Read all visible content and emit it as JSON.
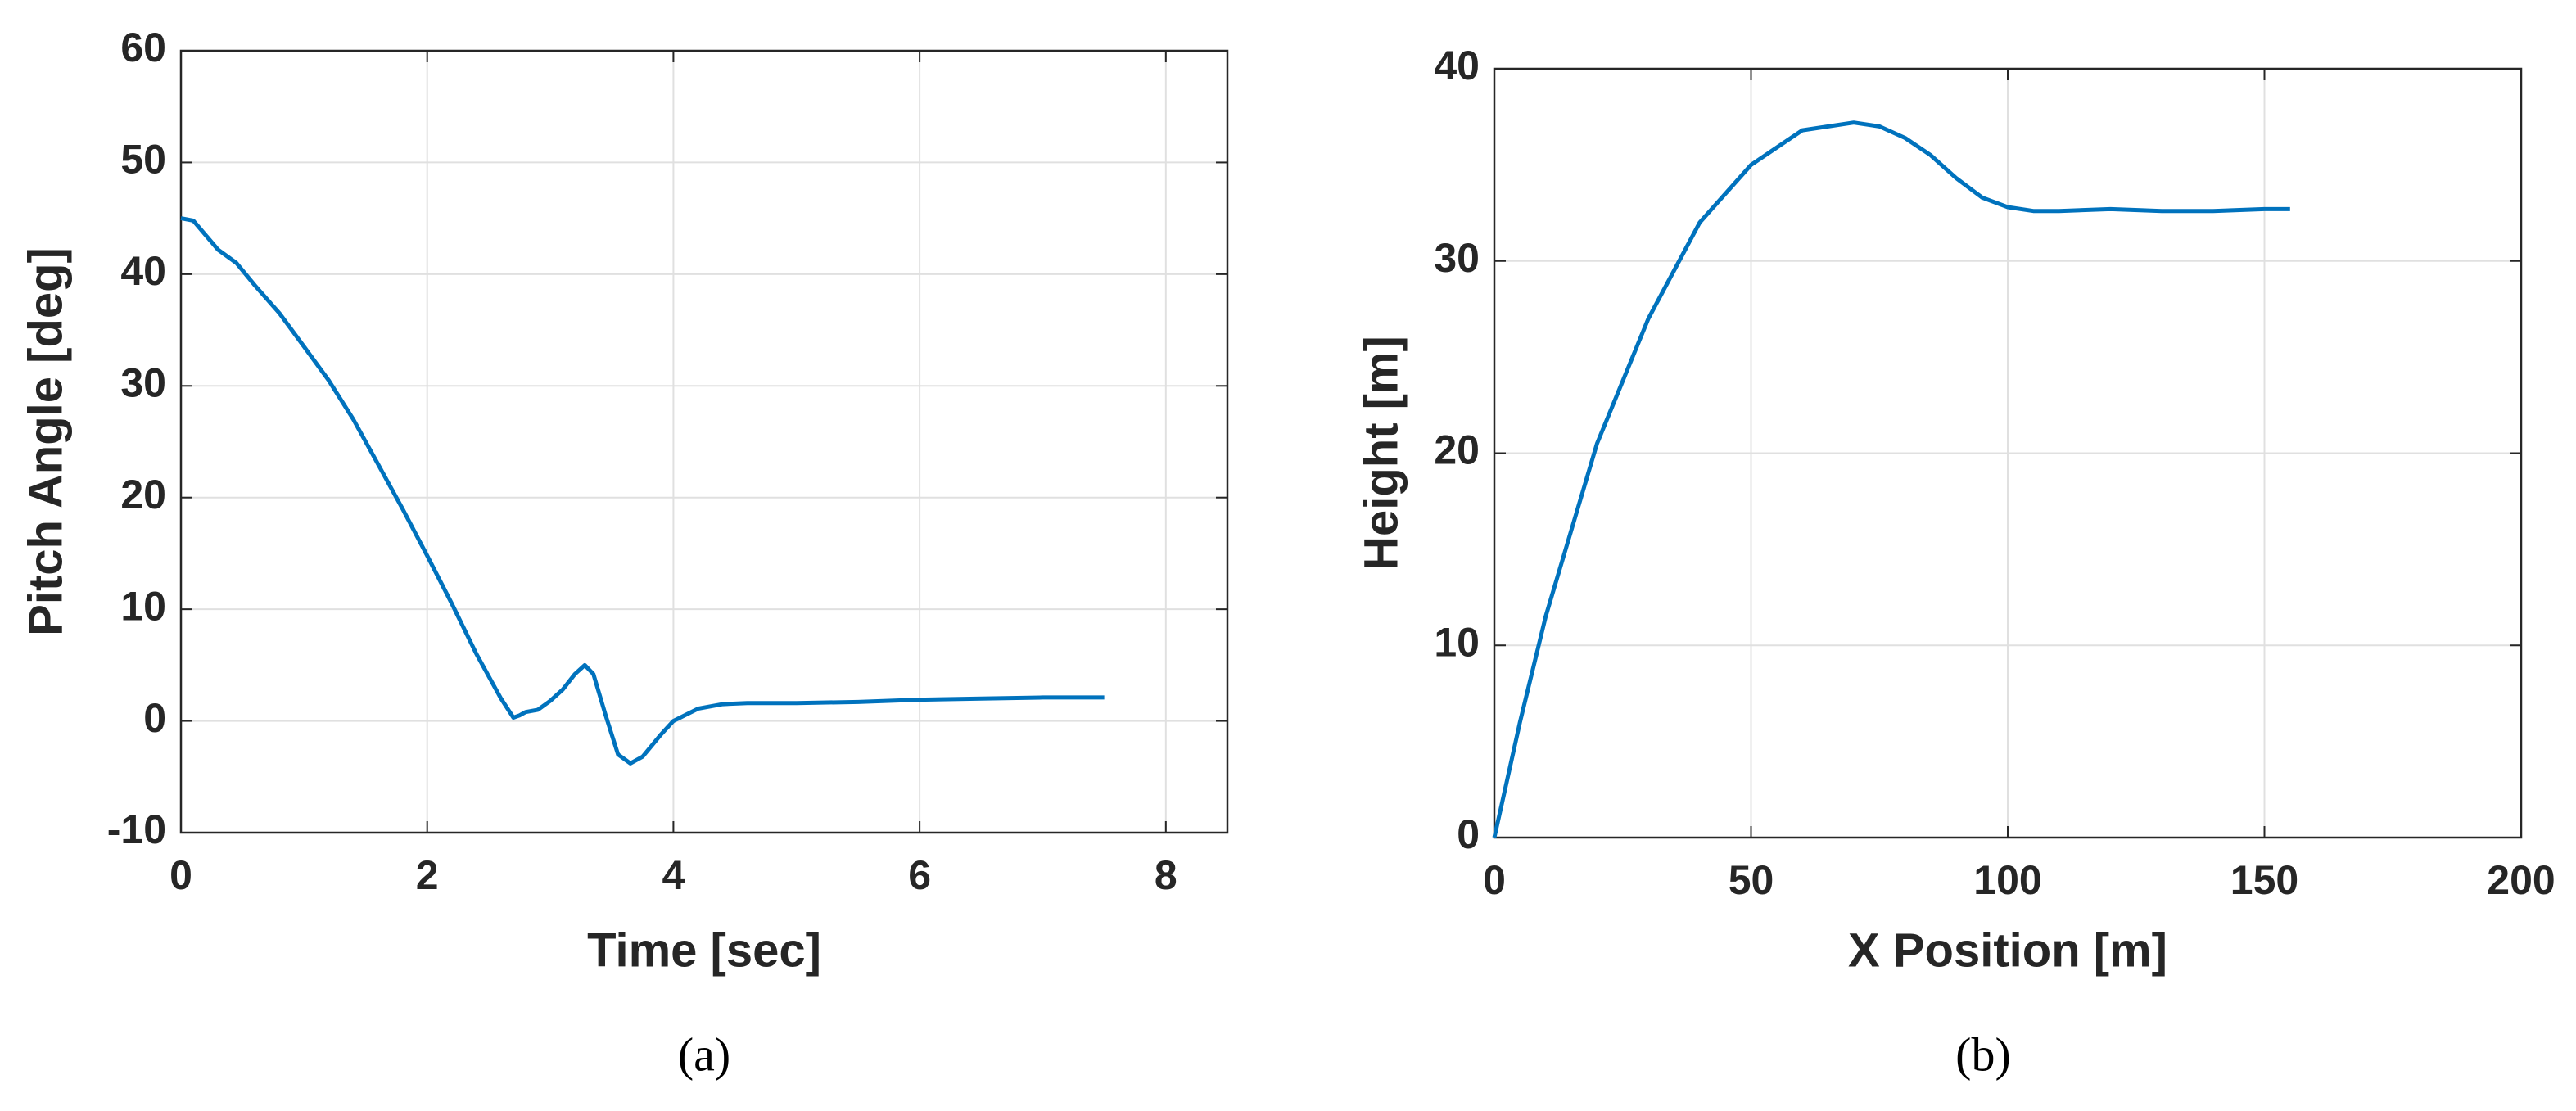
{
  "chart_data": [
    {
      "type": "line",
      "caption": "(a)",
      "x_label": "Time [sec]",
      "y_label": "Pitch Angle [deg]",
      "x": [
        0,
        0.1,
        0.2,
        0.3,
        0.45,
        0.6,
        0.8,
        1.0,
        1.2,
        1.4,
        1.6,
        1.8,
        2.0,
        2.2,
        2.4,
        2.6,
        2.7,
        2.75,
        2.8,
        2.9,
        3.0,
        3.1,
        3.2,
        3.28,
        3.35,
        3.45,
        3.55,
        3.65,
        3.75,
        3.9,
        4.0,
        4.2,
        4.4,
        4.6,
        5.0,
        5.5,
        6.0,
        6.5,
        7.0,
        7.5
      ],
      "values": [
        45,
        44.8,
        43.5,
        42.2,
        41,
        39,
        36.5,
        33.5,
        30.5,
        27,
        23,
        19,
        14.8,
        10.5,
        6,
        2,
        0.3,
        0.5,
        0.8,
        1,
        1.8,
        2.8,
        4.2,
        5,
        4.2,
        0.5,
        -3,
        -3.8,
        -3.2,
        -1.2,
        0,
        1.1,
        1.5,
        1.6,
        1.6,
        1.7,
        1.9,
        2.0,
        2.1,
        2.1
      ],
      "color": "#0072bd",
      "xlim": [
        0,
        8.5
      ],
      "ylim": [
        -10,
        60
      ],
      "xticks": [
        0,
        2,
        4,
        6,
        8
      ],
      "yticks": [
        -10,
        0,
        10,
        20,
        30,
        40,
        50,
        60
      ],
      "grid": true
    },
    {
      "type": "line",
      "caption": "(b)",
      "x_label": "X Position [m]",
      "y_label": "Height [m]",
      "x": [
        0,
        5,
        10,
        20,
        30,
        40,
        50,
        60,
        70,
        75,
        80,
        85,
        90,
        95,
        100,
        105,
        110,
        120,
        130,
        140,
        150,
        155
      ],
      "values": [
        0,
        6,
        11.5,
        20.5,
        27,
        32,
        35,
        36.8,
        37.2,
        37,
        36.4,
        35.5,
        34.3,
        33.3,
        32.8,
        32.6,
        32.6,
        32.7,
        32.6,
        32.6,
        32.7,
        32.7
      ],
      "color": "#0072bd",
      "xlim": [
        0,
        200
      ],
      "ylim": [
        0,
        40
      ],
      "xticks": [
        0,
        50,
        100,
        150,
        200
      ],
      "yticks": [
        0,
        10,
        20,
        30,
        40
      ],
      "grid": true
    }
  ]
}
